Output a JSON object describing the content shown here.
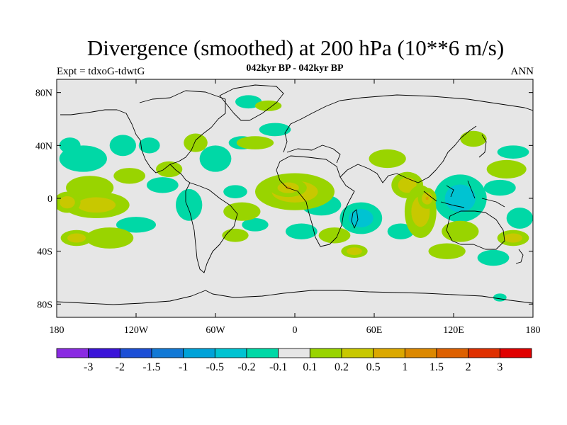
{
  "title": "Divergence (smoothed) at 200 hPa (10**6 m/s)",
  "left_subtitle": "Expt = tdxoG-tdwtG",
  "center_subtitle": "042kyr BP - 042kyr BP",
  "right_subtitle": "ANN",
  "map_data": {
    "type": "filled-contour-map",
    "projection": "cylindrical-equidistant",
    "lon_range": [
      -180,
      180
    ],
    "lat_range": [
      -90,
      90
    ],
    "lat_ticks": [
      {
        "value": 80,
        "label": "80N"
      },
      {
        "value": 40,
        "label": "40N"
      },
      {
        "value": 0,
        "label": "0"
      },
      {
        "value": -40,
        "label": "40S"
      },
      {
        "value": -80,
        "label": "80S"
      }
    ],
    "lon_ticks": [
      {
        "value": -180,
        "label": "180"
      },
      {
        "value": -120,
        "label": "120W"
      },
      {
        "value": -60,
        "label": "60W"
      },
      {
        "value": 0,
        "label": "0"
      },
      {
        "value": 60,
        "label": "60E"
      },
      {
        "value": 120,
        "label": "120E"
      },
      {
        "value": 180,
        "label": "180"
      }
    ],
    "background_color": "#e6e6e6",
    "positive_regions": [
      {
        "lon": -155,
        "lat": 8,
        "rx": 18,
        "ry": 9,
        "level": 1
      },
      {
        "lon": -150,
        "lat": -5,
        "rx": 25,
        "ry": 10,
        "level": 2
      },
      {
        "lon": -172,
        "lat": -3,
        "rx": 10,
        "ry": 8,
        "level": 2
      },
      {
        "lon": -125,
        "lat": 17,
        "rx": 12,
        "ry": 6,
        "level": 1
      },
      {
        "lon": -140,
        "lat": -30,
        "rx": 18,
        "ry": 8,
        "level": 1
      },
      {
        "lon": -165,
        "lat": -30,
        "rx": 12,
        "ry": 6,
        "level": 2
      },
      {
        "lon": -95,
        "lat": 22,
        "rx": 10,
        "ry": 6,
        "level": 1
      },
      {
        "lon": -75,
        "lat": 42,
        "rx": 9,
        "ry": 7,
        "level": 1
      },
      {
        "lon": -20,
        "lat": 70,
        "rx": 10,
        "ry": 4,
        "level": 1
      },
      {
        "lon": -30,
        "lat": 42,
        "rx": 14,
        "ry": 5,
        "level": 1
      },
      {
        "lon": 0,
        "lat": 5,
        "rx": 30,
        "ry": 14,
        "level": 2
      },
      {
        "lon": -5,
        "lat": 8,
        "rx": 14,
        "ry": 7,
        "level": 3
      },
      {
        "lon": -40,
        "lat": -10,
        "rx": 14,
        "ry": 7,
        "level": 1
      },
      {
        "lon": -45,
        "lat": -28,
        "rx": 10,
        "ry": 5,
        "level": 1
      },
      {
        "lon": 30,
        "lat": -28,
        "rx": 12,
        "ry": 6,
        "level": 1
      },
      {
        "lon": 45,
        "lat": -40,
        "rx": 10,
        "ry": 5,
        "level": 2
      },
      {
        "lon": 70,
        "lat": 30,
        "rx": 14,
        "ry": 7,
        "level": 1
      },
      {
        "lon": 85,
        "lat": 10,
        "rx": 12,
        "ry": 10,
        "level": 2
      },
      {
        "lon": 95,
        "lat": -10,
        "rx": 12,
        "ry": 20,
        "level": 2
      },
      {
        "lon": 100,
        "lat": 0,
        "rx": 7,
        "ry": 8,
        "level": 3
      },
      {
        "lon": 135,
        "lat": 45,
        "rx": 10,
        "ry": 6,
        "level": 1
      },
      {
        "lon": 125,
        "lat": -25,
        "rx": 14,
        "ry": 8,
        "level": 1
      },
      {
        "lon": 160,
        "lat": 22,
        "rx": 15,
        "ry": 7,
        "level": 1
      },
      {
        "lon": 115,
        "lat": -40,
        "rx": 14,
        "ry": 6,
        "level": 1
      },
      {
        "lon": 165,
        "lat": -30,
        "rx": 12,
        "ry": 6,
        "level": 2
      }
    ],
    "negative_regions": [
      {
        "lon": -160,
        "lat": 30,
        "rx": 18,
        "ry": 10,
        "level": 1
      },
      {
        "lon": -170,
        "lat": 40,
        "rx": 8,
        "ry": 6,
        "level": 1
      },
      {
        "lon": -130,
        "lat": 40,
        "rx": 10,
        "ry": 8,
        "level": 1
      },
      {
        "lon": -110,
        "lat": 40,
        "rx": 8,
        "ry": 6,
        "level": 1
      },
      {
        "lon": -100,
        "lat": 10,
        "rx": 12,
        "ry": 6,
        "level": 1
      },
      {
        "lon": -120,
        "lat": -20,
        "rx": 15,
        "ry": 6,
        "level": 1
      },
      {
        "lon": -80,
        "lat": -5,
        "rx": 10,
        "ry": 12,
        "level": 1
      },
      {
        "lon": -60,
        "lat": 30,
        "rx": 12,
        "ry": 10,
        "level": 1
      },
      {
        "lon": -40,
        "lat": 42,
        "rx": 10,
        "ry": 5,
        "level": 1
      },
      {
        "lon": -35,
        "lat": 73,
        "rx": 10,
        "ry": 5,
        "level": 1
      },
      {
        "lon": -15,
        "lat": 52,
        "rx": 12,
        "ry": 5,
        "level": 1
      },
      {
        "lon": -45,
        "lat": 5,
        "rx": 9,
        "ry": 5,
        "level": 1
      },
      {
        "lon": -30,
        "lat": -20,
        "rx": 10,
        "ry": 5,
        "level": 1
      },
      {
        "lon": 20,
        "lat": -5,
        "rx": 15,
        "ry": 8,
        "level": 1
      },
      {
        "lon": 5,
        "lat": -25,
        "rx": 12,
        "ry": 6,
        "level": 1
      },
      {
        "lon": 50,
        "lat": -15,
        "rx": 16,
        "ry": 12,
        "level": 2
      },
      {
        "lon": 80,
        "lat": -25,
        "rx": 10,
        "ry": 6,
        "level": 1
      },
      {
        "lon": 125,
        "lat": 0,
        "rx": 20,
        "ry": 18,
        "level": 2
      },
      {
        "lon": 155,
        "lat": 8,
        "rx": 12,
        "ry": 6,
        "level": 1
      },
      {
        "lon": 165,
        "lat": 35,
        "rx": 12,
        "ry": 5,
        "level": 1
      },
      {
        "lon": 170,
        "lat": -15,
        "rx": 10,
        "ry": 8,
        "level": 1
      },
      {
        "lon": 150,
        "lat": -45,
        "rx": 12,
        "ry": 6,
        "level": 1
      },
      {
        "lon": 155,
        "lat": -75,
        "rx": 5,
        "ry": 3,
        "level": 1
      }
    ]
  },
  "colorbar": {
    "colors": [
      "#8a2be2",
      "#3b14d9",
      "#1c4fd6",
      "#1279d6",
      "#00a2d8",
      "#00c3d2",
      "#00d8a6",
      "#e6e6e6",
      "#99d400",
      "#c8c800",
      "#dba800",
      "#dc8800",
      "#dd6000",
      "#df3000",
      "#e00000"
    ],
    "labels": [
      "-3",
      "-2",
      "-1.5",
      "-1",
      "-0.5",
      "-0.2",
      "-0.1",
      "0.1",
      "0.2",
      "0.5",
      "1",
      "1.5",
      "2",
      "3"
    ]
  }
}
